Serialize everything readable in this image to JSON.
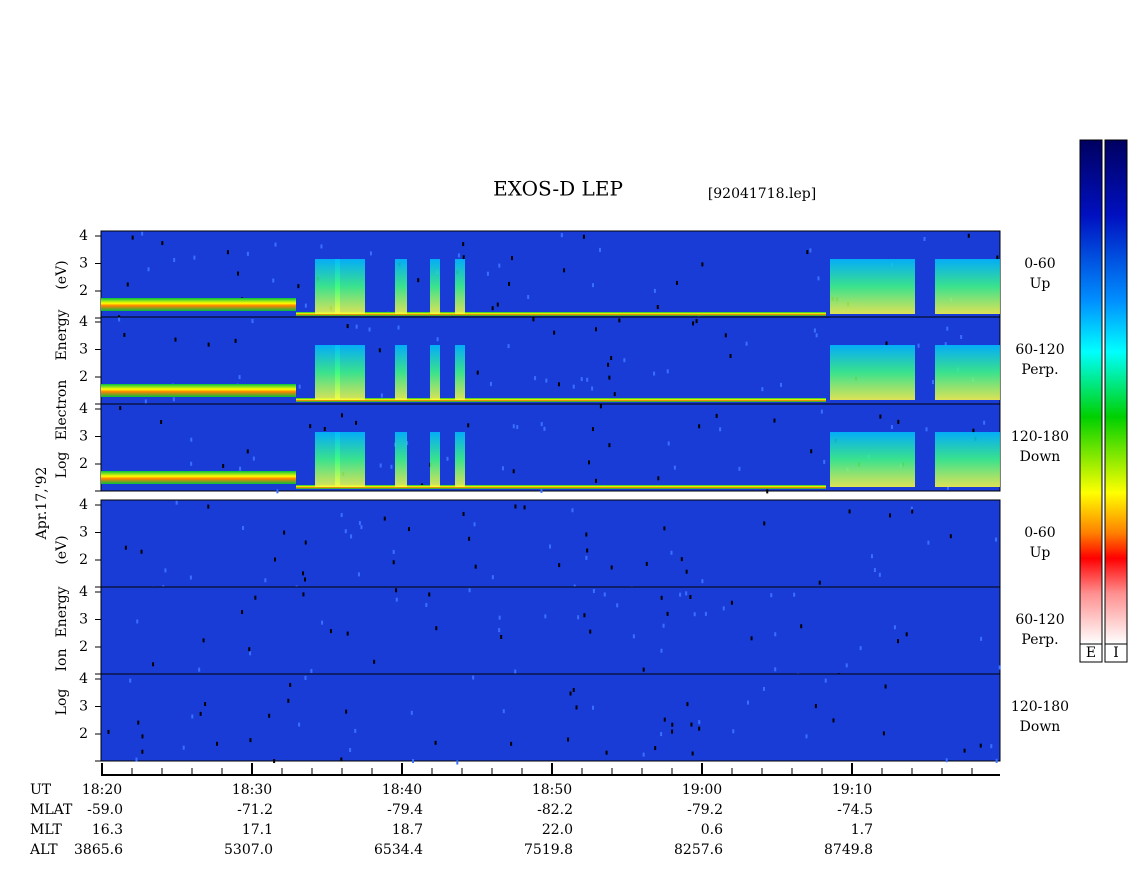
{
  "header": {
    "title": "EXOS-D LEP",
    "file": "[92041718.lep]",
    "date": "Apr.17,'92"
  },
  "groups": [
    {
      "ylabel": [
        "Log",
        "Electron",
        "Energy",
        "(eV)"
      ],
      "panels": [
        {
          "yticks": [
            4,
            3,
            2
          ],
          "pitch": [
            "0-60",
            "Up"
          ]
        },
        {
          "yticks": [
            4,
            3,
            2
          ],
          "pitch": [
            "60-120",
            "Perp."
          ]
        },
        {
          "yticks": [
            4,
            3,
            2
          ],
          "pitch": [
            "120-180",
            "Down"
          ]
        }
      ]
    },
    {
      "ylabel": [
        "Log",
        "Ion",
        "Energy",
        "(eV)"
      ],
      "panels": [
        {
          "yticks": [
            4,
            3,
            2
          ],
          "pitch": [
            "0-60",
            "Up"
          ]
        },
        {
          "yticks": [
            4,
            3,
            2
          ],
          "pitch": [
            "60-120",
            "Perp."
          ]
        },
        {
          "yticks": [
            4,
            3,
            2
          ],
          "pitch": [
            "120-180",
            "Down"
          ]
        }
      ]
    }
  ],
  "colorbar": {
    "labels": [
      "E",
      "I"
    ]
  },
  "ephemeris": [
    {
      "label": "UT",
      "values": [
        "18:20",
        "18:30",
        "18:40",
        "18:50",
        "19:00",
        "19:10"
      ]
    },
    {
      "label": "MLAT",
      "values": [
        "-59.0",
        "-71.2",
        "-79.4",
        "-82.2",
        "-79.2",
        "-74.5"
      ]
    },
    {
      "label": "MLT",
      "values": [
        "16.3",
        "17.1",
        "18.7",
        "22.0",
        "0.6",
        "1.7"
      ]
    },
    {
      "label": "ALT",
      "values": [
        "3865.6",
        "5307.0",
        "6534.4",
        "7519.8",
        "8257.6",
        "8749.8"
      ]
    }
  ]
}
